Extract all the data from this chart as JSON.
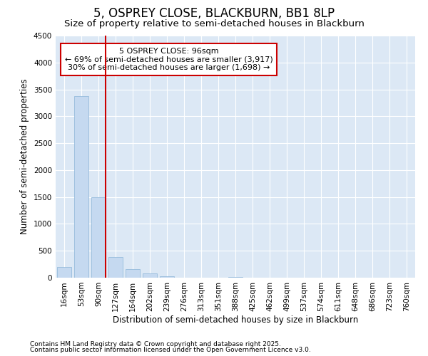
{
  "title": "5, OSPREY CLOSE, BLACKBURN, BB1 8LP",
  "subtitle": "Size of property relative to semi-detached houses in Blackburn",
  "xlabel": "Distribution of semi-detached houses by size in Blackburn",
  "ylabel": "Number of semi-detached properties",
  "footnote1": "Contains HM Land Registry data © Crown copyright and database right 2025.",
  "footnote2": "Contains public sector information licensed under the Open Government Licence v3.0.",
  "categories": [
    "16sqm",
    "53sqm",
    "90sqm",
    "127sqm",
    "164sqm",
    "202sqm",
    "239sqm",
    "276sqm",
    "313sqm",
    "351sqm",
    "388sqm",
    "425sqm",
    "462sqm",
    "499sqm",
    "537sqm",
    "574sqm",
    "611sqm",
    "648sqm",
    "686sqm",
    "723sqm",
    "760sqm"
  ],
  "values": [
    200,
    3375,
    1500,
    385,
    155,
    75,
    30,
    5,
    0,
    0,
    10,
    0,
    0,
    0,
    0,
    0,
    0,
    0,
    0,
    0,
    0
  ],
  "bar_color": "#c5d9f0",
  "bar_edge_color": "#8ab4d8",
  "highlight_line_color": "#cc0000",
  "annotation_text": "5 OSPREY CLOSE: 96sqm\n← 69% of semi-detached houses are smaller (3,917)\n30% of semi-detached houses are larger (1,698) →",
  "annotation_box_color": "#cc0000",
  "ylim": [
    0,
    4500
  ],
  "yticks": [
    0,
    500,
    1000,
    1500,
    2000,
    2500,
    3000,
    3500,
    4000,
    4500
  ],
  "bg_color": "#dce8f5",
  "grid_color": "#ffffff",
  "fig_bg_color": "#ffffff",
  "title_fontsize": 12,
  "subtitle_fontsize": 9.5,
  "axis_label_fontsize": 8.5,
  "tick_fontsize": 7.5,
  "footnote_fontsize": 6.5
}
